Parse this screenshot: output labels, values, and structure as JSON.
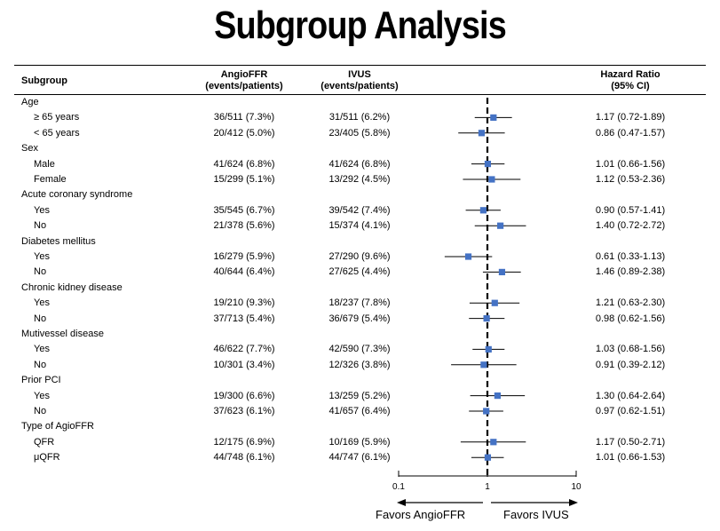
{
  "title": "Subgroup Analysis",
  "header": {
    "subgroup": "Subgroup",
    "col_a_line1": "AngioFFR",
    "col_a_line2": "(events/patients)",
    "col_b_line1": "IVUS",
    "col_b_line2": "(events/patients)",
    "hr_line1": "Hazard Ratio",
    "hr_line2": "(95% CI)"
  },
  "rows": [
    {
      "kind": "group",
      "label": "Age"
    },
    {
      "kind": "item",
      "label": "≥ 65 years",
      "a": "36/511 (7.3%)",
      "b": "31/511 (6.2%)",
      "hr": "1.17 (0.72-1.89)"
    },
    {
      "kind": "item",
      "label": "< 65 years",
      "a": "20/412 (5.0%)",
      "b": "23/405 (5.8%)",
      "hr": "0.86 (0.47-1.57)"
    },
    {
      "kind": "group",
      "label": "Sex"
    },
    {
      "kind": "item",
      "label": "Male",
      "a": "41/624 (6.8%)",
      "b": "41/624 (6.8%)",
      "hr": "1.01 (0.66-1.56)"
    },
    {
      "kind": "item",
      "label": "Female",
      "a": "15/299 (5.1%)",
      "b": "13/292 (4.5%)",
      "hr": "1.12 (0.53-2.36)"
    },
    {
      "kind": "group",
      "label": "Acute coronary syndrome"
    },
    {
      "kind": "item",
      "label": "Yes",
      "a": "35/545 (6.7%)",
      "b": "39/542 (7.4%)",
      "hr": "0.90 (0.57-1.41)"
    },
    {
      "kind": "item",
      "label": "No",
      "a": "21/378 (5.6%)",
      "b": "15/374 (4.1%)",
      "hr": "1.40 (0.72-2.72)"
    },
    {
      "kind": "group",
      "label": "Diabetes mellitus"
    },
    {
      "kind": "item",
      "label": "Yes",
      "a": "16/279 (5.9%)",
      "b": "27/290 (9.6%)",
      "hr": "0.61 (0.33-1.13)"
    },
    {
      "kind": "item",
      "label": "No",
      "a": "40/644 (6.4%)",
      "b": "27/625 (4.4%)",
      "hr": "1.46 (0.89-2.38)"
    },
    {
      "kind": "group",
      "label": "Chronic kidney disease"
    },
    {
      "kind": "item",
      "label": "Yes",
      "a": "19/210 (9.3%)",
      "b": "18/237 (7.8%)",
      "hr": "1.21 (0.63-2.30)"
    },
    {
      "kind": "item",
      "label": "No",
      "a": "37/713 (5.4%)",
      "b": "36/679 (5.4%)",
      "hr": "0.98 (0.62-1.56)"
    },
    {
      "kind": "group",
      "label": "Mutivessel disease"
    },
    {
      "kind": "item",
      "label": "Yes",
      "a": "46/622 (7.7%)",
      "b": "42/590 (7.3%)",
      "hr": "1.03 (0.68-1.56)"
    },
    {
      "kind": "item",
      "label": "No",
      "a": "10/301 (3.4%)",
      "b": "12/326 (3.8%)",
      "hr": "0.91 (0.39-2.12)"
    },
    {
      "kind": "group",
      "label": "Prior PCI"
    },
    {
      "kind": "item",
      "label": "Yes",
      "a": "19/300 (6.6%)",
      "b": "13/259 (5.2%)",
      "hr": "1.30 (0.64-2.64)"
    },
    {
      "kind": "item",
      "label": "No",
      "a": "37/623 (6.1%)",
      "b": "41/657 (6.4%)",
      "hr": "0.97 (0.62-1.51)"
    },
    {
      "kind": "group",
      "label": "Type of AgioFFR"
    },
    {
      "kind": "item",
      "label": "QFR",
      "a": "12/175 (6.9%)",
      "b": "10/169 (5.9%)",
      "hr": "1.17 (0.50-2.71)"
    },
    {
      "kind": "item",
      "label": "μQFR",
      "a": "44/748 (6.1%)",
      "b": "44/747 (6.1%)",
      "hr": "1.01 (0.66-1.53)"
    }
  ],
  "axis": {
    "ticks": [
      "0.1",
      "1",
      "10"
    ]
  },
  "favors_left": "Favors AngioFFR",
  "favors_right": "Favors IVUS",
  "colors": {
    "marker": "#4472C4",
    "line": "#000000"
  },
  "chart_data": {
    "type": "forest",
    "title": "Subgroup Analysis",
    "scale": "log",
    "xlim": [
      0.1,
      10
    ],
    "xticks": [
      0.1,
      1,
      10
    ],
    "reference_line": 1,
    "xlabel_left": "Favors AngioFFR",
    "xlabel_right": "Favors IVUS",
    "points": [
      {
        "group": "Age",
        "label": "≥ 65 years",
        "hr": 1.17,
        "lo": 0.72,
        "hi": 1.89
      },
      {
        "group": "Age",
        "label": "< 65 years",
        "hr": 0.86,
        "lo": 0.47,
        "hi": 1.57
      },
      {
        "group": "Sex",
        "label": "Male",
        "hr": 1.01,
        "lo": 0.66,
        "hi": 1.56
      },
      {
        "group": "Sex",
        "label": "Female",
        "hr": 1.12,
        "lo": 0.53,
        "hi": 2.36
      },
      {
        "group": "Acute coronary syndrome",
        "label": "Yes",
        "hr": 0.9,
        "lo": 0.57,
        "hi": 1.41
      },
      {
        "group": "Acute coronary syndrome",
        "label": "No",
        "hr": 1.4,
        "lo": 0.72,
        "hi": 2.72
      },
      {
        "group": "Diabetes mellitus",
        "label": "Yes",
        "hr": 0.61,
        "lo": 0.33,
        "hi": 1.13
      },
      {
        "group": "Diabetes mellitus",
        "label": "No",
        "hr": 1.46,
        "lo": 0.89,
        "hi": 2.38
      },
      {
        "group": "Chronic kidney disease",
        "label": "Yes",
        "hr": 1.21,
        "lo": 0.63,
        "hi": 2.3
      },
      {
        "group": "Chronic kidney disease",
        "label": "No",
        "hr": 0.98,
        "lo": 0.62,
        "hi": 1.56
      },
      {
        "group": "Mutivessel disease",
        "label": "Yes",
        "hr": 1.03,
        "lo": 0.68,
        "hi": 1.56
      },
      {
        "group": "Mutivessel disease",
        "label": "No",
        "hr": 0.91,
        "lo": 0.39,
        "hi": 2.12
      },
      {
        "group": "Prior PCI",
        "label": "Yes",
        "hr": 1.3,
        "lo": 0.64,
        "hi": 2.64
      },
      {
        "group": "Prior PCI",
        "label": "No",
        "hr": 0.97,
        "lo": 0.62,
        "hi": 1.51
      },
      {
        "group": "Type of AgioFFR",
        "label": "QFR",
        "hr": 1.17,
        "lo": 0.5,
        "hi": 2.71
      },
      {
        "group": "Type of AgioFFR",
        "label": "μQFR",
        "hr": 1.01,
        "lo": 0.66,
        "hi": 1.53
      }
    ]
  }
}
